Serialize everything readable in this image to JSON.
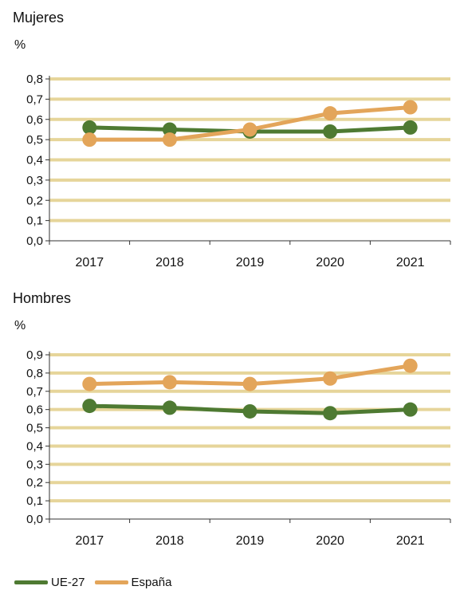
{
  "colors": {
    "grid": "#E6D59A",
    "axis": "#333333",
    "ue27": "#4E7A32",
    "espana": "#E3A55A"
  },
  "legend": [
    {
      "label": "UE-27",
      "color": "#4E7A32"
    },
    {
      "label": "España",
      "color": "#E3A55A"
    }
  ],
  "chart_data": [
    {
      "type": "line",
      "title": "Mujeres",
      "ylabel": "%",
      "x": [
        "2017",
        "2018",
        "2019",
        "2020",
        "2021"
      ],
      "ylim": [
        0,
        0.8
      ],
      "yticks": [
        "0,0",
        "0,1",
        "0,2",
        "0,3",
        "0,4",
        "0,5",
        "0,6",
        "0,7",
        "0,8"
      ],
      "grid": true,
      "legend_position": "bottom-left",
      "series": [
        {
          "name": "UE-27",
          "color": "#4E7A32",
          "values": [
            0.56,
            0.55,
            0.54,
            0.54,
            0.56
          ]
        },
        {
          "name": "España",
          "color": "#E3A55A",
          "values": [
            0.5,
            0.5,
            0.55,
            0.63,
            0.66
          ]
        }
      ]
    },
    {
      "type": "line",
      "title": "Hombres",
      "ylabel": "%",
      "x": [
        "2017",
        "2018",
        "2019",
        "2020",
        "2021"
      ],
      "ylim": [
        0,
        0.9
      ],
      "yticks": [
        "0,0",
        "0,1",
        "0,2",
        "0,3",
        "0,4",
        "0,5",
        "0,6",
        "0,7",
        "0,8",
        "0,9"
      ],
      "grid": true,
      "legend_position": "bottom-left",
      "series": [
        {
          "name": "UE-27",
          "color": "#4E7A32",
          "values": [
            0.62,
            0.61,
            0.59,
            0.58,
            0.6
          ]
        },
        {
          "name": "España",
          "color": "#E3A55A",
          "values": [
            0.74,
            0.75,
            0.74,
            0.77,
            0.84
          ]
        }
      ]
    }
  ]
}
